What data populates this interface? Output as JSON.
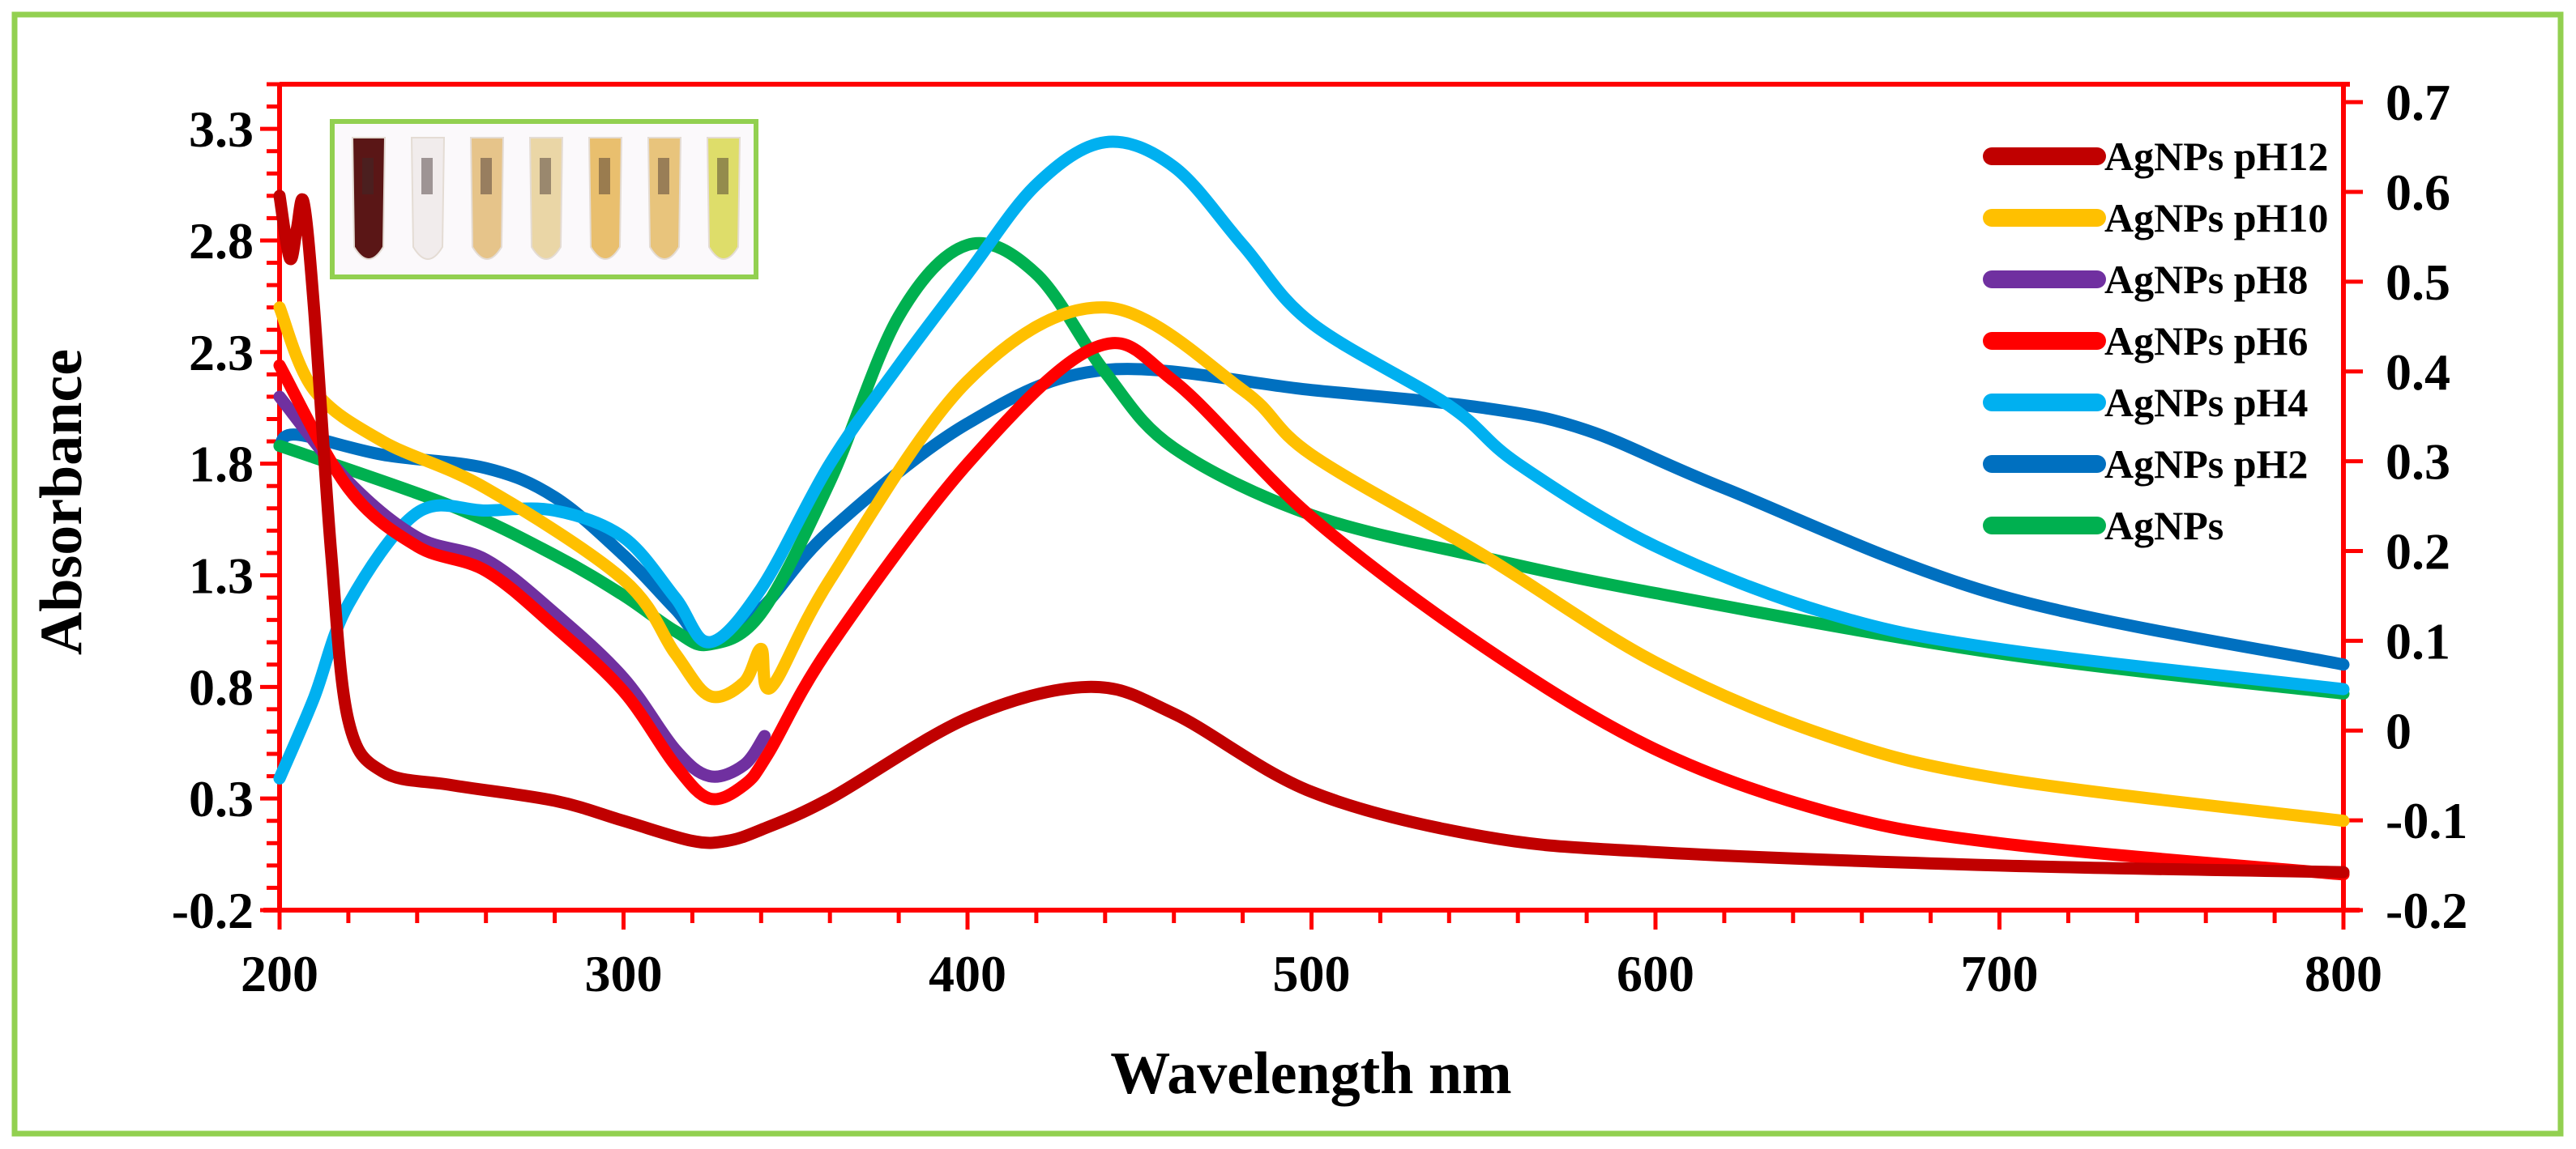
{
  "chart_data": {
    "type": "line",
    "title": "",
    "xlabel": "Wavelength nm",
    "ylabel": "Absorbance",
    "xlim": [
      200,
      800
    ],
    "ylim": [
      -0.2,
      3.5
    ],
    "y2lim": [
      -0.2,
      0.72
    ],
    "x_ticks": [
      "200",
      "300",
      "400",
      "500",
      "600",
      "700",
      "800"
    ],
    "x_tick_values": [
      200,
      300,
      400,
      500,
      600,
      700,
      800
    ],
    "y_ticks": [
      "3.3",
      "2.8",
      "2.3",
      "1.8",
      "1.3",
      "0.8",
      "0.3",
      "-0.2"
    ],
    "y_tick_values": [
      3.3,
      2.8,
      2.3,
      1.8,
      1.3,
      0.8,
      0.3,
      -0.2
    ],
    "y2_ticks": [
      "0.7",
      "0.6",
      "0.5",
      "0.4",
      "0.3",
      "0.2",
      "0.1",
      "0",
      "-0.1",
      "-0.2"
    ],
    "y2_tick_values": [
      0.7,
      0.6,
      0.5,
      0.4,
      0.3,
      0.2,
      0.1,
      0,
      -0.1,
      -0.2
    ],
    "grid": false,
    "legend_position": "top-right",
    "inset": "photo of seven sample vials (dark brown to pale yellow)",
    "series": [
      {
        "name": "AgNPs pH12",
        "color": "#c00000",
        "x": [
          200,
          203,
          205,
          207,
          210,
          215,
          220,
          230,
          250,
          280,
          300,
          320,
          330,
          340,
          360,
          400,
          435,
          460,
          500,
          550,
          600,
          700,
          800
        ],
        "y": [
          3.0,
          2.72,
          2.85,
          2.97,
          2.5,
          1.4,
          0.65,
          0.42,
          0.36,
          0.29,
          0.2,
          0.11,
          0.11,
          0.16,
          0.3,
          0.66,
          0.8,
          0.68,
          0.33,
          0.13,
          0.06,
          0.0,
          -0.03
        ]
      },
      {
        "name": "AgNPs pH10",
        "color": "#ffc000",
        "x": [
          200,
          210,
          230,
          260,
          300,
          315,
          325,
          335,
          340,
          343,
          360,
          400,
          440,
          480,
          500,
          550,
          600,
          650,
          700,
          800
        ],
        "y": [
          2.5,
          2.13,
          1.9,
          1.69,
          1.28,
          0.95,
          0.76,
          0.82,
          0.97,
          0.8,
          1.28,
          2.17,
          2.5,
          2.13,
          1.84,
          1.39,
          0.91,
          0.58,
          0.39,
          0.2
        ]
      },
      {
        "name": "AgNPs pH8",
        "color": "#7030a0",
        "x": [
          200,
          220,
          240,
          260,
          280,
          300,
          315,
          325,
          335,
          341
        ],
        "y": [
          2.1,
          1.72,
          1.47,
          1.37,
          1.13,
          0.84,
          0.52,
          0.4,
          0.45,
          0.58
        ]
      },
      {
        "name": "AgNPs pH6",
        "color": "#ff0000",
        "x": [
          200,
          220,
          240,
          260,
          280,
          300,
          315,
          325,
          335,
          342,
          360,
          400,
          437,
          460,
          500,
          550,
          600,
          650,
          700,
          800
        ],
        "y": [
          2.24,
          1.69,
          1.43,
          1.32,
          1.07,
          0.78,
          0.45,
          0.3,
          0.36,
          0.5,
          0.98,
          1.8,
          2.32,
          2.17,
          1.56,
          0.98,
          0.52,
          0.24,
          0.1,
          -0.04
        ]
      },
      {
        "name": "AgNPs pH4",
        "color": "#00b0f0",
        "x": [
          200,
          210,
          220,
          240,
          260,
          280,
          300,
          315,
          325,
          340,
          360,
          380,
          400,
          420,
          440,
          460,
          480,
          500,
          540,
          560,
          600,
          650,
          700,
          800
        ],
        "y": [
          0.39,
          0.75,
          1.17,
          1.58,
          1.59,
          1.59,
          1.47,
          1.2,
          1.0,
          1.24,
          1.8,
          2.24,
          2.65,
          3.05,
          3.24,
          3.13,
          2.78,
          2.43,
          2.06,
          1.8,
          1.43,
          1.13,
          0.97,
          0.79
        ]
      },
      {
        "name": "AgNPs pH2",
        "color": "#0070c0",
        "x": [
          200,
          205,
          230,
          260,
          280,
          300,
          315,
          325,
          340,
          360,
          400,
          440,
          500,
          550,
          580,
          620,
          700,
          800
        ],
        "y": [
          1.88,
          1.93,
          1.84,
          1.78,
          1.65,
          1.39,
          1.15,
          1.0,
          1.15,
          1.5,
          1.98,
          2.22,
          2.13,
          2.05,
          1.95,
          1.69,
          1.21,
          0.9
        ]
      },
      {
        "name": "AgNPs",
        "color": "#00b050",
        "x": [
          200,
          250,
          280,
          300,
          315,
          325,
          340,
          360,
          380,
          400,
          420,
          440,
          460,
          500,
          550,
          600,
          700,
          800
        ],
        "y": [
          1.88,
          1.61,
          1.39,
          1.21,
          1.05,
          0.99,
          1.13,
          1.72,
          2.46,
          2.78,
          2.65,
          2.21,
          1.87,
          1.57,
          1.38,
          1.22,
          0.95,
          0.77
        ]
      }
    ]
  },
  "colors": {
    "frame": "#92d050",
    "axis": "#ff0000",
    "inset_border": "#92d050"
  },
  "inset_vials": [
    "#5a1616",
    "#f1ecec",
    "#e6c48a",
    "#ead6a6",
    "#e9bf6e",
    "#e8c47c",
    "#dedd6a"
  ]
}
